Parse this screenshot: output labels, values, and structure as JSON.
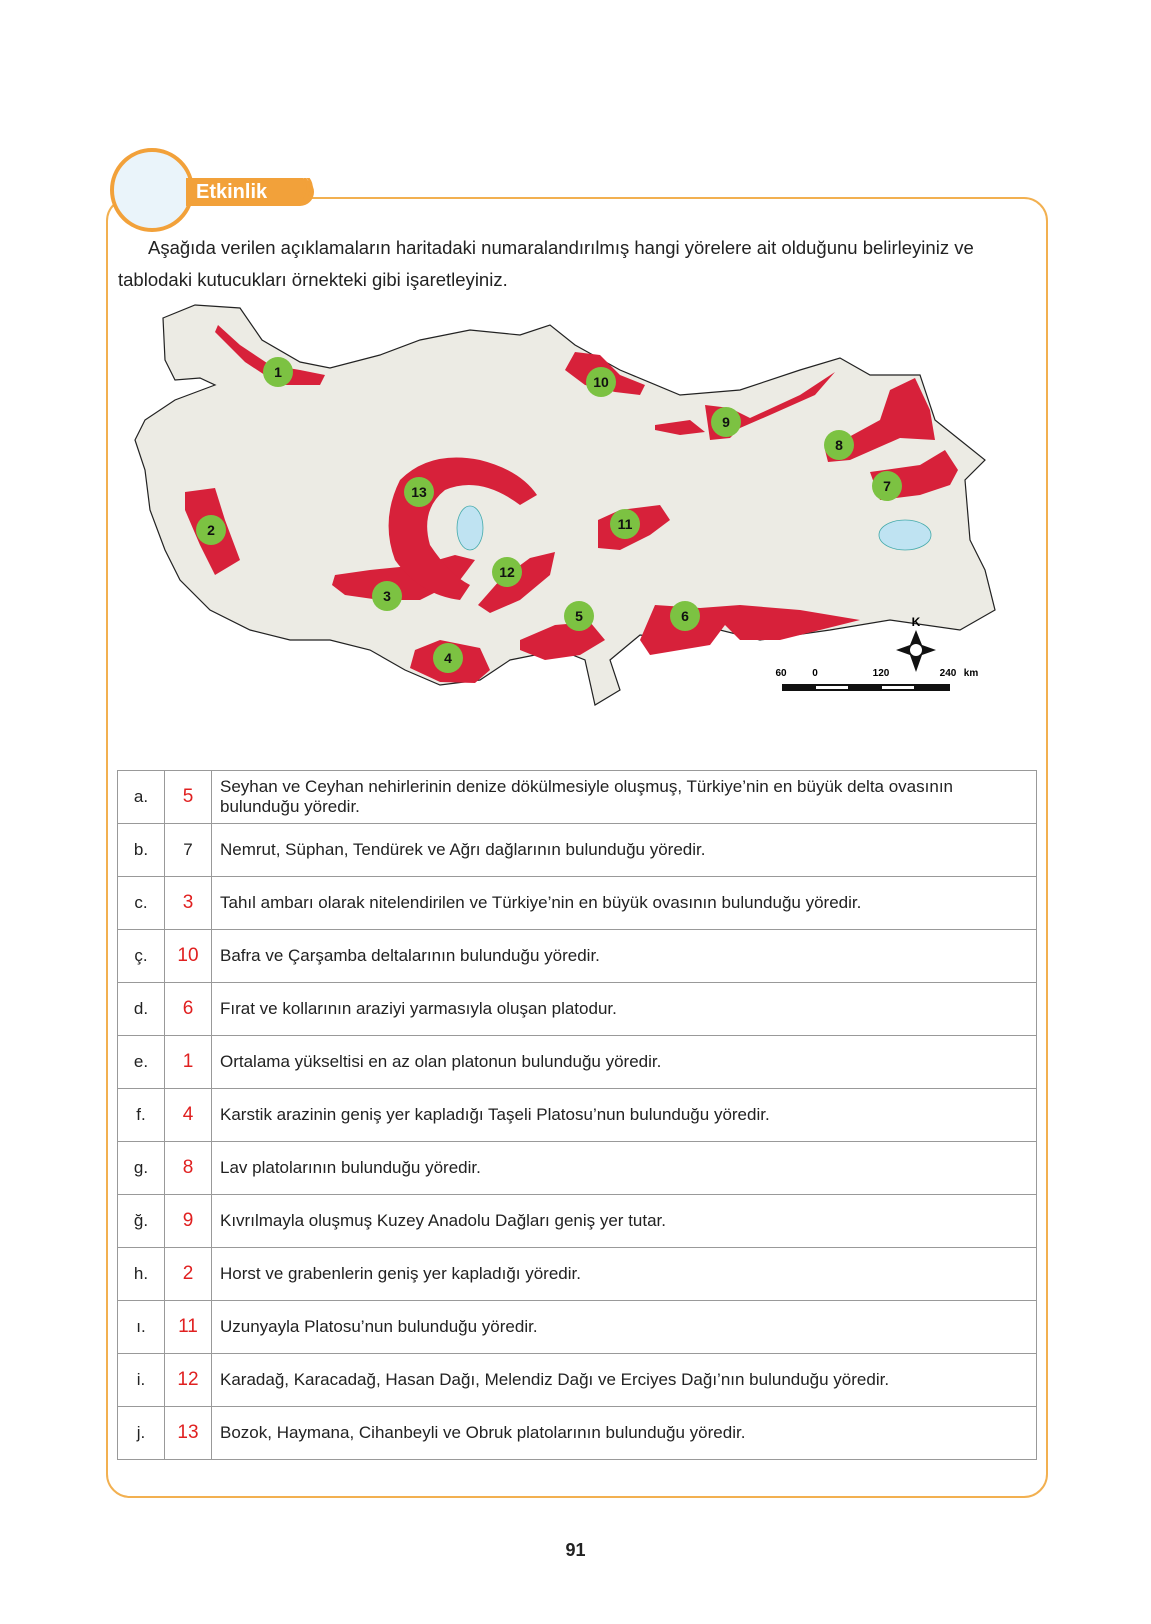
{
  "header": {
    "badge": "Etkinlik"
  },
  "intro": "Aşağıda verilen açıklamaların haritadaki numaralandırılmış hangi yörelere ait olduğunu belirleyiniz ve tablodaki kutucukları örnekteki gibi işaretleyiniz.",
  "map": {
    "labels": [
      "1",
      "2",
      "3",
      "4",
      "5",
      "6",
      "7",
      "8",
      "9",
      "10",
      "11",
      "12",
      "13"
    ],
    "compass": "K",
    "scale": [
      "60",
      "0",
      "120",
      "240",
      "km"
    ],
    "region_color": "#d7213a",
    "label_color": "#7cc242"
  },
  "rows": [
    {
      "letter": "a.",
      "answer": "5",
      "text": "Seyhan ve Ceyhan nehirlerinin denize dökülmesiyle oluşmuş, Türkiye’nin en büyük delta ovasının bulunduğu yöredir."
    },
    {
      "letter": "b.",
      "answer": "7",
      "text": "Nemrut, Süphan, Tendürek ve Ağrı dağlarının bulunduğu yöredir."
    },
    {
      "letter": "c.",
      "answer": "3",
      "text": "Tahıl ambarı olarak nitelendirilen ve Türkiye’nin en büyük ovasının bulunduğu yöredir."
    },
    {
      "letter": "ç.",
      "answer": "10",
      "text": "Bafra ve Çarşamba deltalarının bulunduğu yöredir."
    },
    {
      "letter": "d.",
      "answer": "6",
      "text": "Fırat ve kollarının araziyi yarmasıyla oluşan platodur."
    },
    {
      "letter": "e.",
      "answer": "1",
      "text": "Ortalama yükseltisi en az olan platonun bulunduğu yöredir."
    },
    {
      "letter": "f.",
      "answer": "4",
      "text": "Karstik arazinin geniş yer kapladığı Taşeli Platosu’nun bulunduğu yöredir."
    },
    {
      "letter": "g.",
      "answer": "8",
      "text": "Lav platolarının bulunduğu yöredir."
    },
    {
      "letter": "ğ.",
      "answer": "9",
      "text": "Kıvrılmayla oluşmuş Kuzey Anadolu Dağları geniş yer tutar."
    },
    {
      "letter": "h.",
      "answer": "2",
      "text": "Horst ve grabenlerin geniş yer kapladığı yöredir."
    },
    {
      "letter": "ı.",
      "answer": "11",
      "text": "Uzunyayla Platosu’nun bulunduğu yöredir."
    },
    {
      "letter": "i.",
      "answer": "12",
      "text": "Karadağ, Karacadağ, Hasan Dağı, Melendiz Dağı ve Erciyes Dağı’nın bulunduğu yöredir."
    },
    {
      "letter": "j.",
      "answer": "13",
      "text": "Bozok, Haymana, Cihanbeyli ve Obruk platolarının bulunduğu yöredir."
    }
  ],
  "page_number": "91"
}
